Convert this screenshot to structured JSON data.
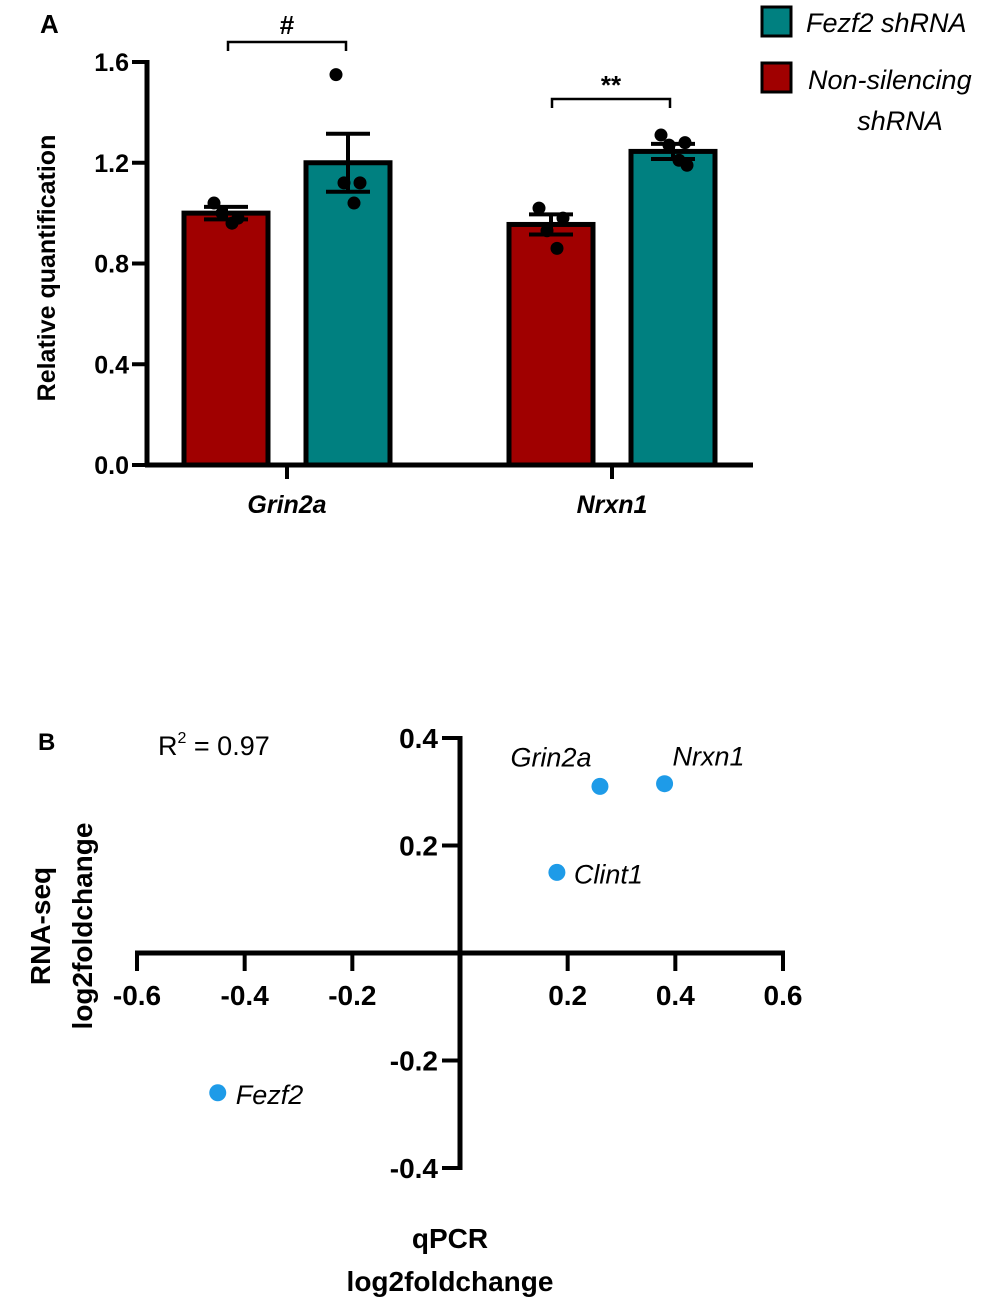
{
  "chart_data": [
    {
      "panel": "A",
      "type": "bar",
      "ylabel": "Relative quantification",
      "ylim": [
        0,
        1.6
      ],
      "y_ticks": [
        "0.0",
        "0.4",
        "0.8",
        "1.2",
        "1.6"
      ],
      "categories": [
        "Grin2a",
        "Nrxn1"
      ],
      "series": [
        {
          "name": "Non-silencing shRNA",
          "color": "#a00000",
          "values": [
            1.0,
            0.955
          ],
          "sem": [
            0.025,
            0.04
          ],
          "points": [
            [
              1.04,
              0.98,
              1.0,
              0.96
            ],
            [
              1.02,
              0.98,
              0.93,
              0.86
            ]
          ]
        },
        {
          "name": "Fezf2 shRNA",
          "color": "#008080",
          "values": [
            1.2,
            1.245
          ],
          "sem": [
            0.115,
            0.03
          ],
          "points": [
            [
              1.55,
              1.12,
              1.12,
              1.04
            ],
            [
              1.31,
              1.28,
              1.27,
              1.21,
              1.19
            ]
          ]
        }
      ],
      "legend": {
        "entries": [
          "Fezf2 shRNA",
          "Non-silencing",
          "shRNA"
        ]
      },
      "annotations": [
        "#",
        "**"
      ]
    },
    {
      "panel": "B",
      "type": "scatter",
      "xlabel": [
        "qPCR",
        "log2foldchange"
      ],
      "ylabel": [
        "RNA-seq",
        "log2foldchange"
      ],
      "xlim": [
        -0.6,
        0.6
      ],
      "ylim": [
        -0.4,
        0.4
      ],
      "x_ticks": [
        "-0.6",
        "-0.4",
        "-0.2",
        "0.2",
        "0.4",
        "0.6"
      ],
      "y_ticks": [
        "0.4",
        "0.2",
        "-0.2",
        "-0.4"
      ],
      "point_color": "#1e9be8",
      "points": [
        {
          "label": "Grin2a",
          "x": 0.26,
          "y": 0.31
        },
        {
          "label": "Nrxn1",
          "x": 0.38,
          "y": 0.315
        },
        {
          "label": "Clint1",
          "x": 0.18,
          "y": 0.15
        },
        {
          "label": "Fezf2",
          "x": -0.45,
          "y": -0.26
        }
      ],
      "r2_label": "R",
      "r2_sup": "2",
      "r2_value": " = 0.97"
    }
  ],
  "panel_labels": {
    "a": "A",
    "b": "B"
  }
}
